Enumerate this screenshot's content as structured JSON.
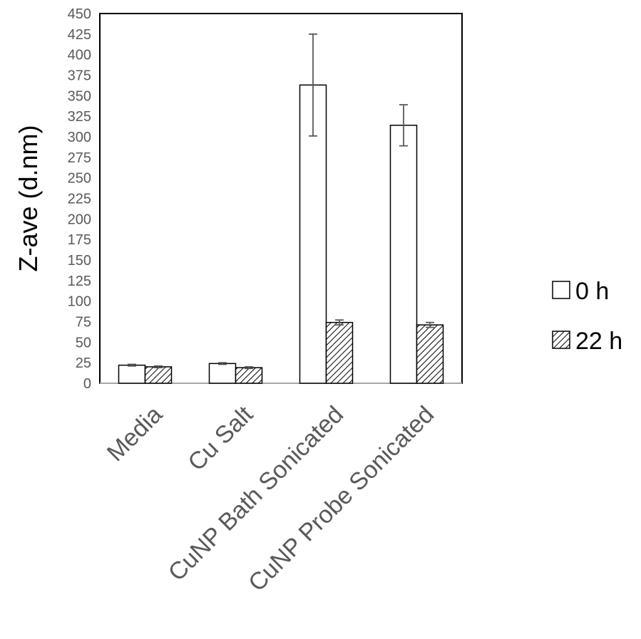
{
  "chart_data": {
    "type": "bar",
    "title": "",
    "xlabel": "",
    "ylabel": "Z-ave (d.nm)",
    "ylim": [
      0,
      450
    ],
    "yticks": [
      0,
      25,
      50,
      75,
      100,
      125,
      150,
      175,
      200,
      225,
      250,
      275,
      300,
      325,
      350,
      375,
      400,
      425,
      450
    ],
    "categories": [
      "Media",
      "Cu Salt",
      "CuNP Bath Sonicated",
      "CuNP Probe Sonicated"
    ],
    "series": [
      {
        "name": "0 h",
        "pattern": "white",
        "values": [
          22,
          24,
          363,
          314
        ],
        "errors": [
          1,
          1,
          62,
          25
        ]
      },
      {
        "name": "22 h",
        "pattern": "hatched",
        "values": [
          20,
          19,
          74,
          71
        ],
        "errors": [
          1,
          1,
          3,
          3
        ]
      }
    ],
    "grid": false,
    "legend_position": "right"
  }
}
